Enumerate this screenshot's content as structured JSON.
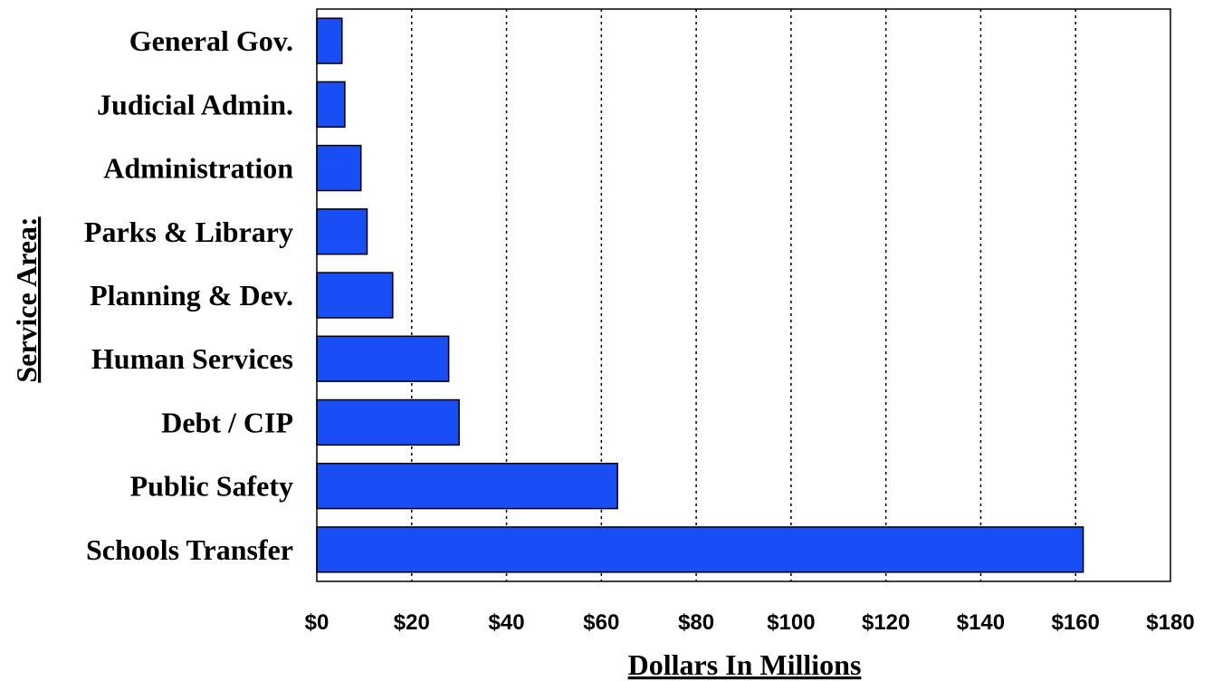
{
  "chart_data": {
    "type": "bar",
    "orientation": "horizontal",
    "categories": [
      "General Gov.",
      "Judicial Admin.",
      "Administration",
      "Parks & Library",
      "Planning & Dev.",
      "Human Services",
      "Debt / CIP",
      "Public Safety",
      "Schools Transfer"
    ],
    "values": [
      5.3,
      5.9,
      9.3,
      10.6,
      16.0,
      27.8,
      30.0,
      63.4,
      161.6
    ],
    "xlabel": "Dollars In Millions",
    "ylabel": "Service Area:",
    "xlim": [
      0,
      180
    ],
    "x_ticks": [
      "$0",
      "$20",
      "$40",
      "$60",
      "$80",
      "$100",
      "$120",
      "$140",
      "$160",
      "$180"
    ],
    "grid": "vertical dashed",
    "bar_color": "#1a4ef5"
  }
}
